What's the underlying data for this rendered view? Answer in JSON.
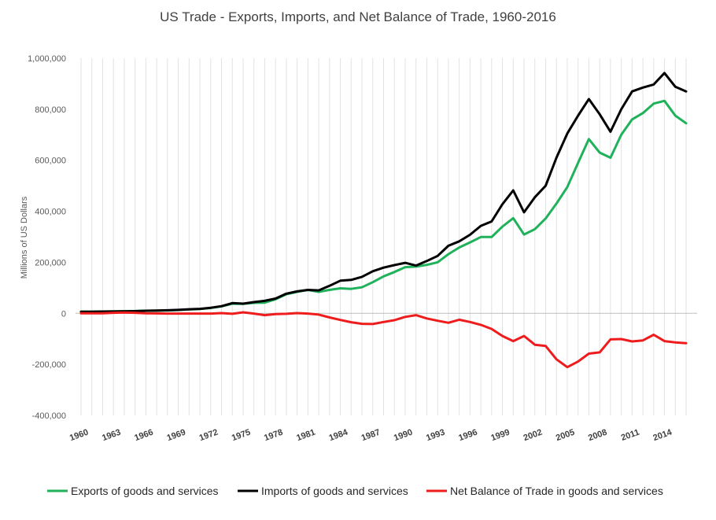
{
  "chart_data": {
    "type": "line",
    "title": "US Trade - Exports, Imports, and Net Balance of Trade, 1960-2016",
    "xlabel": "",
    "ylabel": "Millions of US Dollars",
    "ylim": [
      -400000,
      1000000
    ],
    "yticks": [
      -400000,
      -200000,
      0,
      200000,
      400000,
      600000,
      800000,
      1000000
    ],
    "ytick_labels": [
      "-400,000",
      "-200,000",
      "0",
      "200,000",
      "400,000",
      "600,000",
      "800,000",
      "1,000,000"
    ],
    "xticks": [
      1960,
      1963,
      1966,
      1969,
      1972,
      1975,
      1978,
      1981,
      1984,
      1987,
      1990,
      1993,
      1996,
      1999,
      2002,
      2005,
      2008,
      2011,
      2014
    ],
    "xtick_labels": [
      "1960",
      "1963",
      "1966",
      "1969",
      "1972",
      "1975",
      "1978",
      "1981",
      "1984",
      "1987",
      "1990",
      "1993",
      "1996",
      "1999",
      "2002",
      "2005",
      "2008",
      "2011",
      "2014"
    ],
    "grid": "vertical",
    "legend": "bottom",
    "x": [
      1960,
      1961,
      1962,
      1963,
      1964,
      1965,
      1966,
      1967,
      1968,
      1969,
      1970,
      1971,
      1972,
      1973,
      1974,
      1975,
      1976,
      1977,
      1978,
      1979,
      1980,
      1981,
      1982,
      1983,
      1984,
      1985,
      1986,
      1987,
      1988,
      1989,
      1990,
      1991,
      1992,
      1993,
      1994,
      1995,
      1996,
      1997,
      1998,
      1999,
      2000,
      2001,
      2002,
      2003,
      2004,
      2005,
      2006,
      2007,
      2008,
      2009,
      2010,
      2011,
      2012,
      2013,
      2014,
      2015,
      2016
    ],
    "series": [
      {
        "name": "Exports of goods and services",
        "color": "#1fb25a",
        "values": [
          6000,
          6500,
          7000,
          7500,
          8500,
          9000,
          10000,
          10500,
          11500,
          13000,
          15000,
          17000,
          21000,
          27000,
          38000,
          37000,
          41000,
          42000,
          55000,
          75000,
          84000,
          92000,
          84000,
          92000,
          98000,
          96000,
          102000,
          122000,
          145000,
          162000,
          181000,
          183000,
          190000,
          200000,
          232000,
          258000,
          278000,
          299000,
          299000,
          340000,
          373000,
          309000,
          330000,
          372000,
          430000,
          495000,
          590000,
          683000,
          630000,
          610000,
          700000,
          760000,
          785000,
          822000,
          833000,
          775000,
          745000
        ]
      },
      {
        "name": "Imports of goods and services",
        "color": "#000000",
        "values": [
          6000,
          6500,
          7000,
          7500,
          8000,
          8500,
          10000,
          11000,
          12000,
          13500,
          16000,
          17500,
          22000,
          28000,
          40000,
          38000,
          44000,
          49000,
          58000,
          77000,
          86000,
          92000,
          90000,
          108000,
          128000,
          131000,
          143000,
          165000,
          179000,
          189000,
          198000,
          187000,
          205000,
          225000,
          265000,
          282000,
          308000,
          343000,
          360000,
          428000,
          482000,
          396000,
          455000,
          500000,
          610000,
          705000,
          775000,
          840000,
          780000,
          712000,
          800000,
          870000,
          885000,
          897000,
          942000,
          888000,
          870000
        ]
      },
      {
        "name": "Net Balance of Trade in goods and services",
        "color": "#ee1c1c",
        "values": [
          0,
          0,
          0,
          2000,
          3000,
          2000,
          0,
          -500,
          -1000,
          -1000,
          -1000,
          -1000,
          -1000,
          1000,
          -2000,
          4000,
          -1000,
          -7000,
          -3000,
          -2000,
          1000,
          -1000,
          -5000,
          -16000,
          -26000,
          -35000,
          -41000,
          -42000,
          -34000,
          -27000,
          -14000,
          -7000,
          -20000,
          -29000,
          -37000,
          -25000,
          -34000,
          -45000,
          -61000,
          -89000,
          -109000,
          -89000,
          -123000,
          -128000,
          -180000,
          -211000,
          -189000,
          -158000,
          -153000,
          -102000,
          -101000,
          -110000,
          -106000,
          -84000,
          -109000,
          -114000,
          -117000
        ]
      }
    ]
  }
}
